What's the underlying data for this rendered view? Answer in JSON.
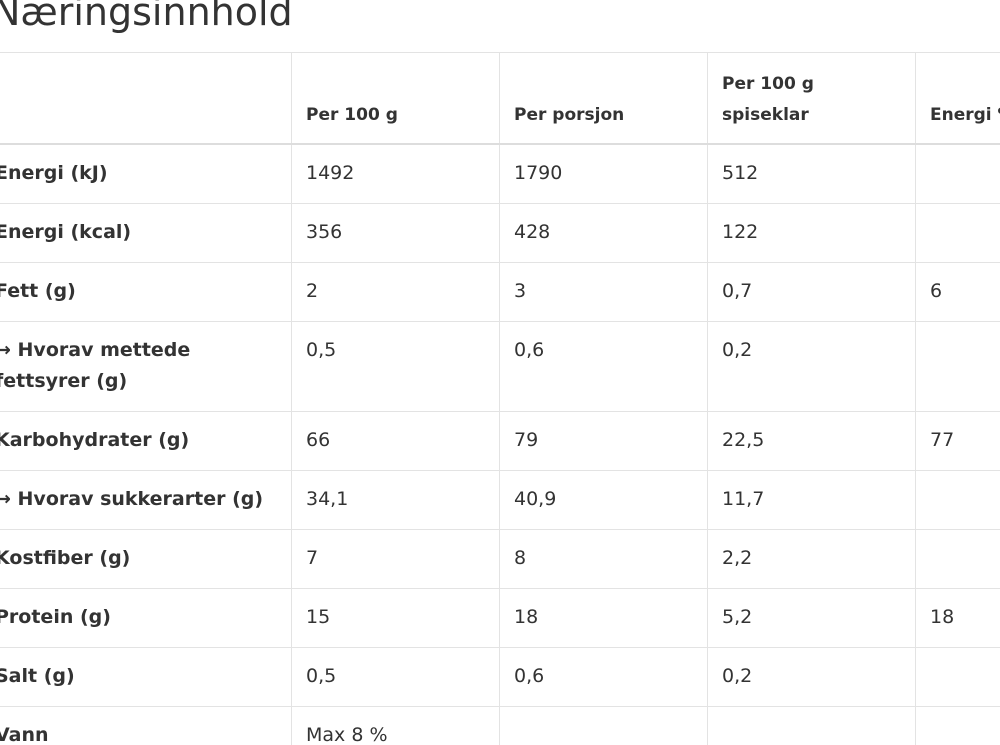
{
  "page": {
    "title": "Næringsinnhold"
  },
  "table": {
    "headers": [
      "",
      "Per 100 g",
      "Per porsjon",
      "Per 100 g spiseklar",
      "Energi %"
    ],
    "rows": [
      {
        "label": "Energi (kJ)",
        "per_100g": "1492",
        "per_portion": "1790",
        "per_100g_ready": "512",
        "energy_pct": ""
      },
      {
        "label": "Energi (kcal)",
        "per_100g": "356",
        "per_portion": "428",
        "per_100g_ready": "122",
        "energy_pct": ""
      },
      {
        "label": "Fett (g)",
        "per_100g": "2",
        "per_portion": "3",
        "per_100g_ready": "0,7",
        "energy_pct": "6"
      },
      {
        "label": "→ Hvorav mettede fettsyrer (g)",
        "per_100g": "0,5",
        "per_portion": "0,6",
        "per_100g_ready": "0,2",
        "energy_pct": ""
      },
      {
        "label": "Karbohydrater (g)",
        "per_100g": "66",
        "per_portion": "79",
        "per_100g_ready": "22,5",
        "energy_pct": "77"
      },
      {
        "label": "→ Hvorav sukkerarter (g)",
        "per_100g": "34,1",
        "per_portion": "40,9",
        "per_100g_ready": "11,7",
        "energy_pct": ""
      },
      {
        "label": "Kostfiber (g)",
        "per_100g": "7",
        "per_portion": "8",
        "per_100g_ready": "2,2",
        "energy_pct": ""
      },
      {
        "label": "Protein (g)",
        "per_100g": "15",
        "per_portion": "18",
        "per_100g_ready": "5,2",
        "energy_pct": "18"
      },
      {
        "label": "Salt (g)",
        "per_100g": "0,5",
        "per_portion": "0,6",
        "per_100g_ready": "0,2",
        "energy_pct": ""
      },
      {
        "label": "Vann",
        "per_100g": "Max 8 %",
        "per_portion": "",
        "per_100g_ready": "",
        "energy_pct": ""
      }
    ]
  }
}
